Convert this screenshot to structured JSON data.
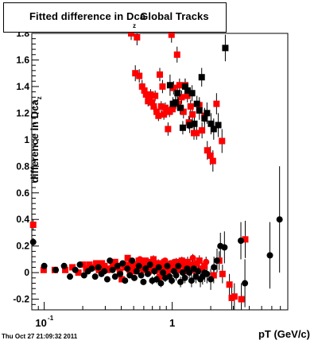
{
  "chart_data": {
    "type": "scatter",
    "title": "Fitted difference in Dca",
    "title_subscript": "z",
    "title_suffix": "Global Tracks",
    "xlabel": "pT (GeV/c)",
    "ylabel": "difference in Dca",
    "ylabel_subscript": "z",
    "x_scale": "log",
    "xlim": [
      0.08,
      8.0
    ],
    "ylim": [
      -0.28,
      1.8
    ],
    "x_ticks": [
      {
        "value": 0.1,
        "label": "10",
        "exponent": "-1"
      },
      {
        "value": 1,
        "label": "1",
        "exponent": ""
      }
    ],
    "y_ticks": [
      {
        "value": -0.2,
        "label": "-0.2"
      },
      {
        "value": 0,
        "label": "0"
      },
      {
        "value": 0.2,
        "label": "0.2"
      },
      {
        "value": 0.4,
        "label": "0.4"
      },
      {
        "value": 0.6,
        "label": "0.6"
      },
      {
        "value": 0.8,
        "label": "0.8"
      },
      {
        "value": 1.0,
        "label": "1"
      },
      {
        "value": 1.2,
        "label": "1.2"
      },
      {
        "value": 1.4,
        "label": "1.4"
      },
      {
        "value": 1.6,
        "label": "1.6"
      },
      {
        "value": 1.8,
        "label": "1.8"
      }
    ],
    "grid": false,
    "legend": "none",
    "timestamp": "Thu Oct 27 21:09:32 2011",
    "series": [
      {
        "marker": "square",
        "color": "#ff0000",
        "points": [
          [
            0.478,
            1.8,
            0.05
          ],
          [
            0.515,
            1.5,
            0.06
          ],
          [
            0.531,
            1.77,
            0.06
          ],
          [
            0.553,
            1.48,
            0.05
          ],
          [
            0.582,
            1.4,
            0.05
          ],
          [
            0.606,
            1.37,
            0.05
          ],
          [
            0.625,
            1.34,
            0.04
          ],
          [
            0.648,
            1.29,
            0.04
          ],
          [
            0.664,
            1.32,
            0.04
          ],
          [
            0.678,
            1.34,
            0.04
          ],
          [
            0.695,
            1.28,
            0.04
          ],
          [
            0.717,
            1.25,
            0.04
          ],
          [
            0.736,
            1.33,
            0.04
          ],
          [
            0.756,
            1.21,
            0.04
          ],
          [
            0.781,
            1.18,
            0.04
          ],
          [
            0.8,
            1.49,
            0.05
          ],
          [
            0.82,
            1.25,
            0.04
          ],
          [
            0.84,
            1.4,
            0.05
          ],
          [
            0.861,
            1.19,
            0.04
          ],
          [
            0.883,
            1.24,
            0.04
          ],
          [
            0.905,
            1.22,
            0.04
          ],
          [
            0.928,
            1.08,
            0.05
          ],
          [
            0.952,
            1.21,
            0.04
          ],
          [
            0.988,
            1.79,
            0.06
          ],
          [
            1.005,
            1.23,
            0.04
          ],
          [
            1.025,
            1.39,
            0.05
          ],
          [
            1.061,
            1.28,
            0.04
          ],
          [
            1.092,
            1.64,
            0.06
          ],
          [
            1.114,
            1.27,
            0.05
          ],
          [
            1.141,
            1.41,
            0.05
          ],
          [
            1.185,
            1.32,
            0.05
          ],
          [
            1.225,
            1.21,
            0.05
          ],
          [
            1.264,
            1.41,
            0.05
          ],
          [
            1.315,
            1.33,
            0.05
          ],
          [
            1.35,
            1.13,
            0.05
          ],
          [
            1.392,
            1.25,
            0.05
          ],
          [
            1.44,
            1.19,
            0.05
          ],
          [
            1.48,
            1.05,
            0.05
          ],
          [
            1.55,
            1.05,
            0.05
          ],
          [
            1.63,
            1.26,
            0.06
          ],
          [
            1.71,
            1.07,
            0.06
          ],
          [
            1.79,
            1.18,
            0.06
          ],
          [
            1.88,
            0.92,
            0.07
          ],
          [
            1.99,
            0.88,
            0.07
          ],
          [
            2.08,
            0.84,
            0.08
          ],
          [
            2.22,
            1.27,
            0.08
          ],
          [
            2.45,
            0.99,
            0.09
          ],
          [
            0.082,
            0.36,
            0.04
          ],
          [
            0.099,
            0.02,
            0.01
          ],
          [
            0.121,
            0.02,
            0.01
          ],
          [
            0.146,
            0.02,
            0.01
          ],
          [
            0.166,
            0.04,
            0.01
          ],
          [
            0.185,
            0.0,
            0.01
          ],
          [
            0.201,
            0.06,
            0.01
          ],
          [
            0.213,
            0.03,
            0.01
          ],
          [
            0.226,
            0.06,
            0.01
          ],
          [
            0.24,
            0.04,
            0.01
          ],
          [
            0.255,
            0.07,
            0.01
          ],
          [
            0.268,
            0.02,
            0.01
          ],
          [
            0.282,
            0.07,
            0.01
          ],
          [
            0.296,
            0.05,
            0.01
          ],
          [
            0.312,
            0.02,
            0.01
          ],
          [
            0.327,
            0.03,
            0.01
          ],
          [
            0.343,
            0.06,
            0.01
          ],
          [
            0.358,
            0.08,
            0.01
          ],
          [
            0.373,
            0.05,
            0.01
          ],
          [
            0.39,
            0.01,
            0.01
          ],
          [
            0.404,
            -0.05,
            0.02
          ],
          [
            0.42,
            0.06,
            0.02
          ],
          [
            0.434,
            0.04,
            0.02
          ],
          [
            0.449,
            0.11,
            0.02
          ],
          [
            0.466,
            0.02,
            0.02
          ],
          [
            0.482,
            0.08,
            0.02
          ],
          [
            0.498,
            0.05,
            0.02
          ],
          [
            0.515,
            0.01,
            0.02
          ],
          [
            0.53,
            0.06,
            0.02
          ],
          [
            0.548,
            0.09,
            0.02
          ],
          [
            0.563,
            0.03,
            0.02
          ],
          [
            0.582,
            0.07,
            0.02
          ],
          [
            0.6,
            0.02,
            0.02
          ],
          [
            0.618,
            0.09,
            0.02
          ],
          [
            0.636,
            0.05,
            0.02
          ],
          [
            0.655,
            0.01,
            0.02
          ],
          [
            0.675,
            0.08,
            0.02
          ],
          [
            0.694,
            0.03,
            0.02
          ],
          [
            0.713,
            0.1,
            0.03
          ],
          [
            0.735,
            0.06,
            0.03
          ],
          [
            0.757,
            0.02,
            0.03
          ],
          [
            0.778,
            0.07,
            0.03
          ],
          [
            0.8,
            -0.03,
            0.03
          ],
          [
            0.823,
            0.05,
            0.03
          ],
          [
            0.845,
            0.02,
            0.03
          ],
          [
            0.87,
            0.08,
            0.03
          ],
          [
            0.895,
            0.04,
            0.03
          ],
          [
            0.92,
            0.0,
            0.03
          ],
          [
            0.945,
            0.06,
            0.03
          ],
          [
            0.975,
            0.03,
            0.03
          ],
          [
            1.005,
            0.07,
            0.03
          ],
          [
            1.04,
            0.04,
            0.03
          ],
          [
            1.075,
            0.08,
            0.03
          ],
          [
            1.11,
            0.02,
            0.03
          ],
          [
            1.15,
            0.06,
            0.03
          ],
          [
            1.19,
            0.09,
            0.03
          ],
          [
            1.23,
            0.01,
            0.03
          ],
          [
            1.275,
            0.05,
            0.03
          ],
          [
            1.32,
            0.08,
            0.04
          ],
          [
            1.375,
            0.03,
            0.04
          ],
          [
            1.43,
            0.06,
            0.04
          ],
          [
            1.49,
            0.02,
            0.04
          ],
          [
            1.56,
            0.07,
            0.04
          ],
          [
            1.63,
            0.09,
            0.04
          ],
          [
            1.7,
            0.03,
            0.05
          ],
          [
            1.79,
            0.05,
            0.05
          ],
          [
            2.11,
            -0.02,
            0.06
          ],
          [
            2.33,
            0.09,
            0.07
          ],
          [
            2.47,
            -0.01,
            0.07
          ],
          [
            2.8,
            -0.09,
            0.08
          ],
          [
            2.92,
            -0.19,
            0.1
          ],
          [
            3.06,
            -0.18,
            0.1
          ],
          [
            3.47,
            -0.2,
            0.12
          ],
          [
            3.72,
            0.25,
            0.14
          ]
        ]
      },
      {
        "marker": "square",
        "color": "#000000",
        "points": [
          [
            0.962,
            1.41,
            0.08
          ],
          [
            1.014,
            1.27,
            0.05
          ],
          [
            1.065,
            1.28,
            0.05
          ],
          [
            1.1,
            1.35,
            0.05
          ],
          [
            1.155,
            1.24,
            0.05
          ],
          [
            1.21,
            1.09,
            0.05
          ],
          [
            1.262,
            1.4,
            0.06
          ],
          [
            1.32,
            1.37,
            0.06
          ],
          [
            1.37,
            1.11,
            0.06
          ],
          [
            1.43,
            1.35,
            0.06
          ],
          [
            1.49,
            1.12,
            0.06
          ],
          [
            1.56,
            1.27,
            0.06
          ],
          [
            1.63,
            1.22,
            0.07
          ],
          [
            1.7,
            1.47,
            0.07
          ],
          [
            1.79,
            1.16,
            0.07
          ],
          [
            1.87,
            1.2,
            0.08
          ],
          [
            2.01,
            1.12,
            0.08
          ],
          [
            2.11,
            1.08,
            0.08
          ],
          [
            2.29,
            1.11,
            0.09
          ],
          [
            2.6,
            1.69,
            0.1
          ]
        ]
      },
      {
        "marker": "circle",
        "color": "#ff0000",
        "points": [
          [
            0.278,
            0.06,
            0.02
          ],
          [
            0.365,
            0.04,
            0.02
          ],
          [
            0.47,
            0.07,
            0.02
          ],
          [
            0.56,
            0.1,
            0.02
          ],
          [
            0.72,
            0.03,
            0.02
          ],
          [
            0.88,
            0.09,
            0.02
          ],
          [
            1.18,
            0.07,
            0.03
          ],
          [
            1.45,
            0.11,
            0.03
          ],
          [
            1.84,
            0.08,
            0.04
          ]
        ]
      },
      {
        "marker": "circle",
        "color": "#000000",
        "points": [
          [
            0.082,
            0.23,
            0.03
          ],
          [
            0.1,
            0.05,
            0.01
          ],
          [
            0.123,
            0.02,
            0.01
          ],
          [
            0.143,
            0.05,
            0.01
          ],
          [
            0.159,
            -0.03,
            0.01
          ],
          [
            0.175,
            0.02,
            0.01
          ],
          [
            0.19,
            0.06,
            0.01
          ],
          [
            0.205,
            -0.02,
            0.01
          ],
          [
            0.22,
            0.01,
            0.01
          ],
          [
            0.235,
            0.03,
            0.01
          ],
          [
            0.25,
            -0.03,
            0.01
          ],
          [
            0.265,
            0.04,
            0.01
          ],
          [
            0.28,
            -0.01,
            0.01
          ],
          [
            0.295,
            0.01,
            0.01
          ],
          [
            0.311,
            -0.05,
            0.02
          ],
          [
            0.326,
            0.09,
            0.02
          ],
          [
            0.342,
            0.02,
            0.02
          ],
          [
            0.358,
            -0.03,
            0.02
          ],
          [
            0.374,
            0.05,
            0.02
          ],
          [
            0.392,
            -0.01,
            0.02
          ],
          [
            0.41,
            0.07,
            0.02
          ],
          [
            0.428,
            -0.06,
            0.02
          ],
          [
            0.447,
            0.03,
            0.02
          ],
          [
            0.466,
            -0.02,
            0.02
          ],
          [
            0.486,
            0.09,
            0.02
          ],
          [
            0.506,
            -0.04,
            0.02
          ],
          [
            0.527,
            0.01,
            0.02
          ],
          [
            0.549,
            0.05,
            0.02
          ],
          [
            0.572,
            -0.02,
            0.02
          ],
          [
            0.596,
            -0.07,
            0.02
          ],
          [
            0.62,
            0.03,
            0.02
          ],
          [
            0.645,
            -0.01,
            0.02
          ],
          [
            0.671,
            0.06,
            0.02
          ],
          [
            0.698,
            -0.06,
            0.03
          ],
          [
            0.726,
            0.01,
            0.03
          ],
          [
            0.755,
            -0.05,
            0.03
          ],
          [
            0.785,
            0.04,
            0.03
          ],
          [
            0.816,
            -0.08,
            0.03
          ],
          [
            0.848,
            0.0,
            0.03
          ],
          [
            0.882,
            -0.04,
            0.03
          ],
          [
            0.917,
            0.05,
            0.03
          ],
          [
            0.954,
            -0.03,
            0.03
          ],
          [
            0.992,
            -0.06,
            0.03
          ],
          [
            1.032,
            0.01,
            0.03
          ],
          [
            1.073,
            -0.02,
            0.04
          ],
          [
            1.116,
            0.05,
            0.04
          ],
          [
            1.161,
            -0.07,
            0.04
          ],
          [
            1.208,
            0.0,
            0.04
          ],
          [
            1.257,
            -0.04,
            0.04
          ],
          [
            1.308,
            0.03,
            0.04
          ],
          [
            1.361,
            0.0,
            0.04
          ],
          [
            1.416,
            -0.06,
            0.05
          ],
          [
            1.473,
            0.03,
            0.05
          ],
          [
            1.533,
            -0.03,
            0.05
          ],
          [
            1.595,
            0.01,
            0.05
          ],
          [
            1.66,
            -0.05,
            0.06
          ],
          [
            1.727,
            -0.03,
            0.06
          ],
          [
            1.797,
            0.0,
            0.07
          ],
          [
            1.87,
            -0.01,
            0.07
          ],
          [
            2.0,
            -0.05,
            0.08
          ],
          [
            2.12,
            0.04,
            0.08
          ],
          [
            2.24,
            0.09,
            0.09
          ],
          [
            2.38,
            0.2,
            0.1
          ],
          [
            2.56,
            0.19,
            0.12
          ],
          [
            3.44,
            0.24,
            0.14
          ],
          [
            3.7,
            -0.08,
            0.18
          ],
          [
            5.8,
            0.13,
            0.25
          ],
          [
            6.9,
            0.4,
            0.4
          ]
        ]
      }
    ]
  }
}
